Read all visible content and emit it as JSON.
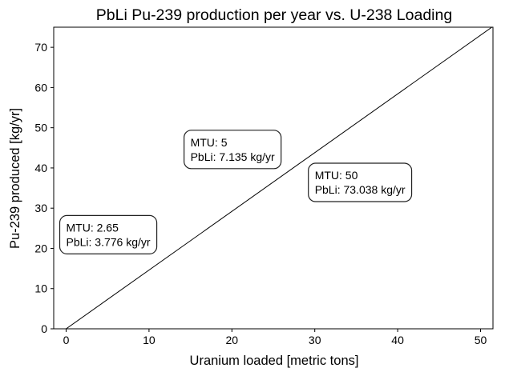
{
  "chart_data": {
    "type": "line",
    "title": "PbLi Pu-239 production per year vs. U-238 Loading",
    "xlabel": "Uranium loaded [metric tons]",
    "ylabel": "Pu-239 produced [kg/yr]",
    "xlim": [
      -1.5,
      51.5
    ],
    "ylim": [
      0,
      75
    ],
    "xticks": [
      0,
      10,
      20,
      30,
      40,
      50
    ],
    "yticks": [
      0,
      10,
      20,
      30,
      40,
      50,
      60,
      70
    ],
    "grid": false,
    "line_color": "#000000",
    "series": [
      {
        "x": [
          0,
          51.5
        ],
        "y": [
          0,
          75.2
        ]
      }
    ],
    "annotations": [
      {
        "x": 0,
        "y": 23.4,
        "lines": [
          "MTU: 2.65",
          "PbLi: 3.776 kg/yr"
        ]
      },
      {
        "x": 15,
        "y": 44.6,
        "lines": [
          "MTU: 5",
          "PbLi: 7.135 kg/yr"
        ]
      },
      {
        "x": 30,
        "y": 36.4,
        "lines": [
          "MTU: 50",
          "PbLi: 73.038 kg/yr"
        ]
      }
    ]
  }
}
